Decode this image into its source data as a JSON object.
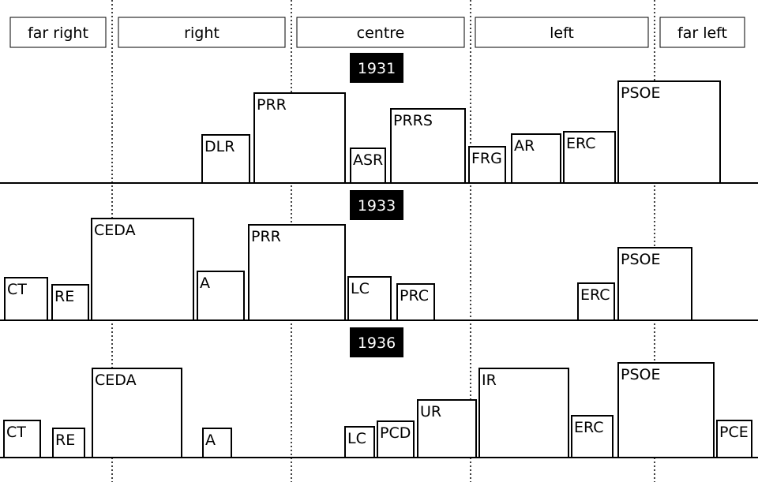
{
  "columns": [
    "far right",
    "right",
    "centre",
    "left",
    "far left"
  ],
  "rows": [
    {
      "year": "1931",
      "parties": [
        "DLR",
        "PRR",
        "ASR",
        "PRRS",
        "FRG",
        "AR",
        "ERC",
        "PSOE"
      ]
    },
    {
      "year": "1933",
      "parties": [
        "CT",
        "RE",
        "CEDA",
        "A",
        "PRR",
        "LC",
        "PRC",
        "ERC",
        "PSOE"
      ]
    },
    {
      "year": "1936",
      "parties": [
        "CT",
        "RE",
        "CEDA",
        "A",
        "LC",
        "PCD",
        "UR",
        "IR",
        "ERC",
        "PSOE",
        "PCE"
      ]
    }
  ]
}
